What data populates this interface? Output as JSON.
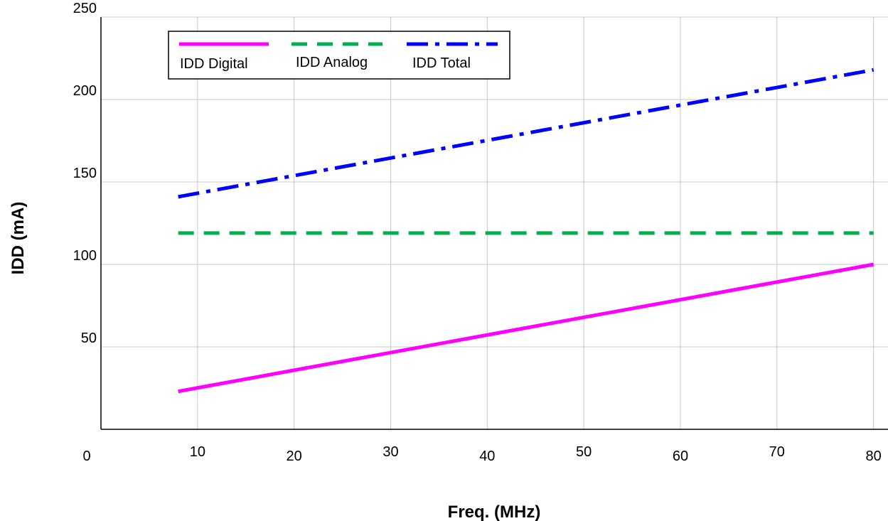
{
  "chart_data": {
    "type": "line",
    "xlabel": "Freq. (MHz)",
    "ylabel": "IDD (mA)",
    "xlim": [
      0,
      81.5
    ],
    "ylim": [
      0,
      250
    ],
    "x_ticks": [
      0,
      10,
      20,
      30,
      40,
      50,
      60,
      70,
      80
    ],
    "y_ticks": [
      50,
      100,
      150,
      200,
      250
    ],
    "grid": true,
    "legend_position": "top-left",
    "series": [
      {
        "name": "IDD Digital",
        "color": "#ff00ff",
        "style": "solid",
        "x": [
          8,
          80
        ],
        "y": [
          23,
          100
        ]
      },
      {
        "name": "IDD Analog",
        "color": "#00b050",
        "style": "dashed",
        "x": [
          8,
          80
        ],
        "y": [
          119,
          119
        ]
      },
      {
        "name": "IDD Total",
        "color": "#0000ff",
        "style": "dashdot",
        "x": [
          8,
          80
        ],
        "y": [
          141,
          218
        ]
      }
    ]
  }
}
